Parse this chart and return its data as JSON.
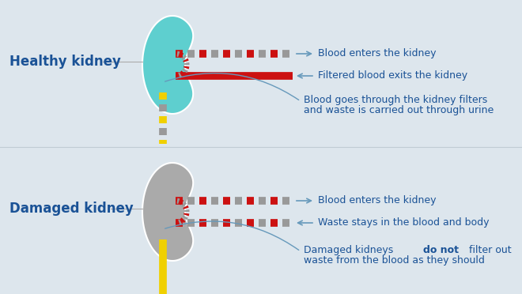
{
  "bg_color": "#dde6ed",
  "healthy_kidney_color": "#5ecfcf",
  "damaged_kidney_color": "#aaaaaa",
  "red_color": "#cc1111",
  "gray_dash_color": "#999999",
  "yellow_color": "#f0d000",
  "blue_text_color": "#1a5296",
  "arrow_color": "#6699bb",
  "healthy_label": "Healthy kidney",
  "damaged_label": "Damaged kidney",
  "healthy_text1": "Blood enters the kidney",
  "healthy_text2": "Filtered blood exits the kidney",
  "healthy_text3_line1": "Blood goes through the kidney filters",
  "healthy_text3_line2": "and waste is carried out through urine",
  "damaged_text1": "Blood enters the kidney",
  "damaged_text2": "Waste stays in the blood and body",
  "damaged_text3_p1": "Damaged kidneys ",
  "damaged_text3_bold": "do not",
  "damaged_text3_p2": "filter out",
  "damaged_text3_line2": "waste from the blood as they should"
}
